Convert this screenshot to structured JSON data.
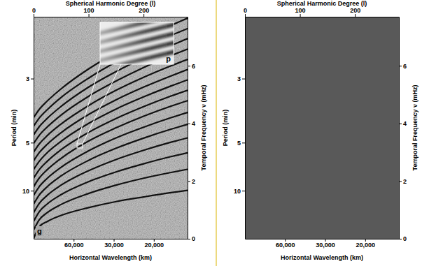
{
  "chart_data": [
    {
      "type": "line",
      "color": "#000000",
      "xlabel": "Spherical Harmonic Degree (l)",
      "xlim": [
        0,
        280
      ],
      "xticks": [
        0,
        100,
        200
      ],
      "x2label": "Horizontal Wavelength (km)",
      "x2ticks": [
        {
          "value": 60000,
          "label": "60,000"
        },
        {
          "value": 30000,
          "label": "30,000"
        },
        {
          "value": 20000,
          "label": "20,000"
        }
      ],
      "ylabel": "Temporal Frequency ν (mHz)",
      "ylim": [
        0,
        7.7
      ],
      "yticks": [
        0,
        2,
        4,
        6
      ],
      "y2label": "Period (min)",
      "y2ticks": [
        3,
        5,
        10
      ],
      "annotations": [
        "g",
        "p"
      ],
      "x": [
        0,
        10,
        25,
        50,
        100,
        150,
        200,
        250,
        280
      ],
      "series": [
        {
          "values": [
            0,
            0.41,
            0.6,
            0.81,
            1.08,
            1.29,
            1.45,
            1.6,
            1.68
          ]
        },
        {
          "values": [
            0.3,
            0.65,
            0.91,
            1.19,
            1.57,
            1.86,
            2.1,
            2.3,
            2.41
          ]
        },
        {
          "values": [
            0.6,
            0.93,
            1.21,
            1.53,
            1.98,
            2.32,
            2.6,
            2.85,
            2.98
          ]
        },
        {
          "values": [
            0.9,
            1.22,
            1.51,
            1.86,
            2.36,
            2.75,
            3.07,
            3.35,
            3.5
          ]
        },
        {
          "values": [
            1.2,
            1.51,
            1.81,
            2.18,
            2.72,
            3.14,
            3.49,
            3.8,
            3.97
          ]
        },
        {
          "values": [
            1.5,
            1.8,
            2.1,
            2.48,
            3.05,
            3.5,
            3.87,
            4.2,
            4.38
          ]
        },
        {
          "values": [
            1.8,
            2.1,
            2.4,
            2.79,
            3.39,
            3.85,
            4.25,
            4.6,
            4.79
          ]
        },
        {
          "values": [
            2.1,
            2.39,
            2.69,
            3.09,
            3.69,
            4.17,
            4.58,
            4.95,
            5.15
          ]
        },
        {
          "values": [
            2.4,
            2.68,
            2.99,
            3.38,
            4.0,
            4.5,
            4.92,
            5.3,
            5.51
          ]
        },
        {
          "values": [
            2.7,
            2.98,
            3.28,
            3.68,
            4.31,
            4.82,
            5.26,
            5.65,
            5.87
          ]
        },
        {
          "values": [
            3.0,
            3.28,
            3.58,
            3.98,
            4.62,
            5.15,
            5.6,
            6.0,
            6.22
          ]
        },
        {
          "values": [
            3.3,
            3.58,
            3.88,
            4.29,
            4.94,
            5.47,
            5.94,
            6.35,
            6.58
          ]
        },
        {
          "values": [
            3.6,
            3.88,
            4.18,
            4.59,
            5.26,
            5.8,
            6.27,
            6.7,
            6.94
          ]
        },
        {
          "values": [
            3.9,
            4.18,
            4.48,
            4.9,
            5.57,
            6.13,
            6.61,
            7.05,
            7.29
          ]
        },
        {
          "values": [
            4.2,
            4.48,
            4.78,
            5.2,
            5.89,
            6.46,
            6.95,
            7.4,
            7.65
          ]
        }
      ]
    },
    {
      "type": "blank",
      "color": "#595959",
      "xlabel": "Spherical Harmonic Degree (l)",
      "xlim": [
        0,
        280
      ],
      "xticks": [
        0,
        100,
        200
      ],
      "x2label": "Horizontal Wavelength (km)",
      "x2ticks": [
        {
          "value": 60000,
          "label": "60,000"
        },
        {
          "value": 30000,
          "label": "30,000"
        },
        {
          "value": 20000,
          "label": "20,000"
        }
      ],
      "ylabel": "Temporal Frequency ν (mHz)",
      "ylim": [
        0,
        7.7
      ],
      "yticks": [
        0,
        2,
        4,
        6
      ],
      "y2label": "Period (min)",
      "y2ticks": [
        3,
        5,
        10
      ]
    }
  ]
}
